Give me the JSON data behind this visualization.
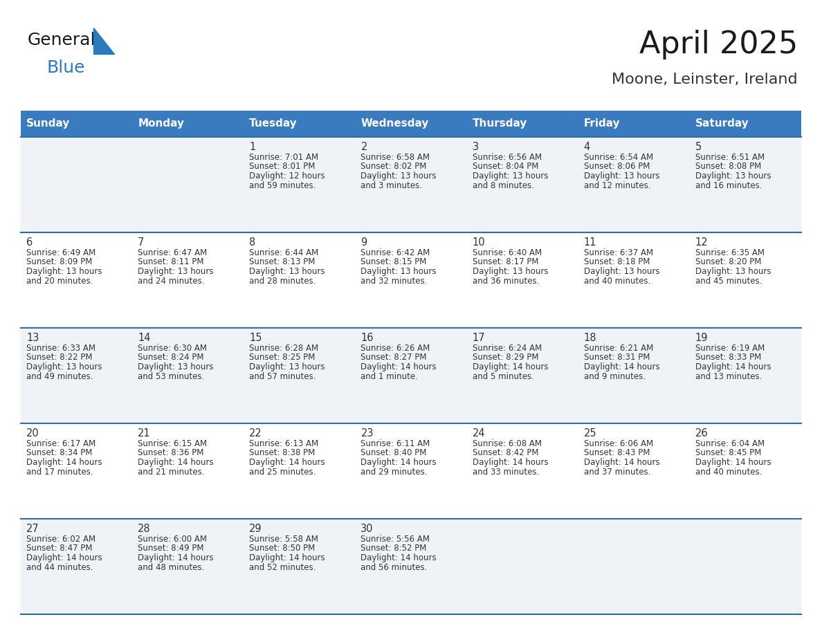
{
  "title": "April 2025",
  "subtitle": "Moone, Leinster, Ireland",
  "header_bg": "#3a7abf",
  "header_text_color": "#ffffff",
  "header_font_size": 11,
  "days_of_week": [
    "Sunday",
    "Monday",
    "Tuesday",
    "Wednesday",
    "Thursday",
    "Friday",
    "Saturday"
  ],
  "title_font_size": 32,
  "subtitle_font_size": 16,
  "cell_font_size": 8.5,
  "day_num_font_size": 10.5,
  "row_bg_colors": [
    "#eff3f7",
    "#ffffff"
  ],
  "border_color": "#2e6da4",
  "text_color": "#333333",
  "calendar": [
    [
      {
        "day": null,
        "lines": []
      },
      {
        "day": null,
        "lines": []
      },
      {
        "day": "1",
        "lines": [
          "Sunrise: 7:01 AM",
          "Sunset: 8:01 PM",
          "Daylight: 12 hours",
          "and 59 minutes."
        ]
      },
      {
        "day": "2",
        "lines": [
          "Sunrise: 6:58 AM",
          "Sunset: 8:02 PM",
          "Daylight: 13 hours",
          "and 3 minutes."
        ]
      },
      {
        "day": "3",
        "lines": [
          "Sunrise: 6:56 AM",
          "Sunset: 8:04 PM",
          "Daylight: 13 hours",
          "and 8 minutes."
        ]
      },
      {
        "day": "4",
        "lines": [
          "Sunrise: 6:54 AM",
          "Sunset: 8:06 PM",
          "Daylight: 13 hours",
          "and 12 minutes."
        ]
      },
      {
        "day": "5",
        "lines": [
          "Sunrise: 6:51 AM",
          "Sunset: 8:08 PM",
          "Daylight: 13 hours",
          "and 16 minutes."
        ]
      }
    ],
    [
      {
        "day": "6",
        "lines": [
          "Sunrise: 6:49 AM",
          "Sunset: 8:09 PM",
          "Daylight: 13 hours",
          "and 20 minutes."
        ]
      },
      {
        "day": "7",
        "lines": [
          "Sunrise: 6:47 AM",
          "Sunset: 8:11 PM",
          "Daylight: 13 hours",
          "and 24 minutes."
        ]
      },
      {
        "day": "8",
        "lines": [
          "Sunrise: 6:44 AM",
          "Sunset: 8:13 PM",
          "Daylight: 13 hours",
          "and 28 minutes."
        ]
      },
      {
        "day": "9",
        "lines": [
          "Sunrise: 6:42 AM",
          "Sunset: 8:15 PM",
          "Daylight: 13 hours",
          "and 32 minutes."
        ]
      },
      {
        "day": "10",
        "lines": [
          "Sunrise: 6:40 AM",
          "Sunset: 8:17 PM",
          "Daylight: 13 hours",
          "and 36 minutes."
        ]
      },
      {
        "day": "11",
        "lines": [
          "Sunrise: 6:37 AM",
          "Sunset: 8:18 PM",
          "Daylight: 13 hours",
          "and 40 minutes."
        ]
      },
      {
        "day": "12",
        "lines": [
          "Sunrise: 6:35 AM",
          "Sunset: 8:20 PM",
          "Daylight: 13 hours",
          "and 45 minutes."
        ]
      }
    ],
    [
      {
        "day": "13",
        "lines": [
          "Sunrise: 6:33 AM",
          "Sunset: 8:22 PM",
          "Daylight: 13 hours",
          "and 49 minutes."
        ]
      },
      {
        "day": "14",
        "lines": [
          "Sunrise: 6:30 AM",
          "Sunset: 8:24 PM",
          "Daylight: 13 hours",
          "and 53 minutes."
        ]
      },
      {
        "day": "15",
        "lines": [
          "Sunrise: 6:28 AM",
          "Sunset: 8:25 PM",
          "Daylight: 13 hours",
          "and 57 minutes."
        ]
      },
      {
        "day": "16",
        "lines": [
          "Sunrise: 6:26 AM",
          "Sunset: 8:27 PM",
          "Daylight: 14 hours",
          "and 1 minute."
        ]
      },
      {
        "day": "17",
        "lines": [
          "Sunrise: 6:24 AM",
          "Sunset: 8:29 PM",
          "Daylight: 14 hours",
          "and 5 minutes."
        ]
      },
      {
        "day": "18",
        "lines": [
          "Sunrise: 6:21 AM",
          "Sunset: 8:31 PM",
          "Daylight: 14 hours",
          "and 9 minutes."
        ]
      },
      {
        "day": "19",
        "lines": [
          "Sunrise: 6:19 AM",
          "Sunset: 8:33 PM",
          "Daylight: 14 hours",
          "and 13 minutes."
        ]
      }
    ],
    [
      {
        "day": "20",
        "lines": [
          "Sunrise: 6:17 AM",
          "Sunset: 8:34 PM",
          "Daylight: 14 hours",
          "and 17 minutes."
        ]
      },
      {
        "day": "21",
        "lines": [
          "Sunrise: 6:15 AM",
          "Sunset: 8:36 PM",
          "Daylight: 14 hours",
          "and 21 minutes."
        ]
      },
      {
        "day": "22",
        "lines": [
          "Sunrise: 6:13 AM",
          "Sunset: 8:38 PM",
          "Daylight: 14 hours",
          "and 25 minutes."
        ]
      },
      {
        "day": "23",
        "lines": [
          "Sunrise: 6:11 AM",
          "Sunset: 8:40 PM",
          "Daylight: 14 hours",
          "and 29 minutes."
        ]
      },
      {
        "day": "24",
        "lines": [
          "Sunrise: 6:08 AM",
          "Sunset: 8:42 PM",
          "Daylight: 14 hours",
          "and 33 minutes."
        ]
      },
      {
        "day": "25",
        "lines": [
          "Sunrise: 6:06 AM",
          "Sunset: 8:43 PM",
          "Daylight: 14 hours",
          "and 37 minutes."
        ]
      },
      {
        "day": "26",
        "lines": [
          "Sunrise: 6:04 AM",
          "Sunset: 8:45 PM",
          "Daylight: 14 hours",
          "and 40 minutes."
        ]
      }
    ],
    [
      {
        "day": "27",
        "lines": [
          "Sunrise: 6:02 AM",
          "Sunset: 8:47 PM",
          "Daylight: 14 hours",
          "and 44 minutes."
        ]
      },
      {
        "day": "28",
        "lines": [
          "Sunrise: 6:00 AM",
          "Sunset: 8:49 PM",
          "Daylight: 14 hours",
          "and 48 minutes."
        ]
      },
      {
        "day": "29",
        "lines": [
          "Sunrise: 5:58 AM",
          "Sunset: 8:50 PM",
          "Daylight: 14 hours",
          "and 52 minutes."
        ]
      },
      {
        "day": "30",
        "lines": [
          "Sunrise: 5:56 AM",
          "Sunset: 8:52 PM",
          "Daylight: 14 hours",
          "and 56 minutes."
        ]
      },
      {
        "day": null,
        "lines": []
      },
      {
        "day": null,
        "lines": []
      },
      {
        "day": null,
        "lines": []
      }
    ]
  ],
  "logo_text1": "General",
  "logo_text2": "Blue",
  "logo_text_color1": "#1a1a1a",
  "logo_text_color2": "#2a7abf",
  "logo_triangle_color": "#2a7abf"
}
